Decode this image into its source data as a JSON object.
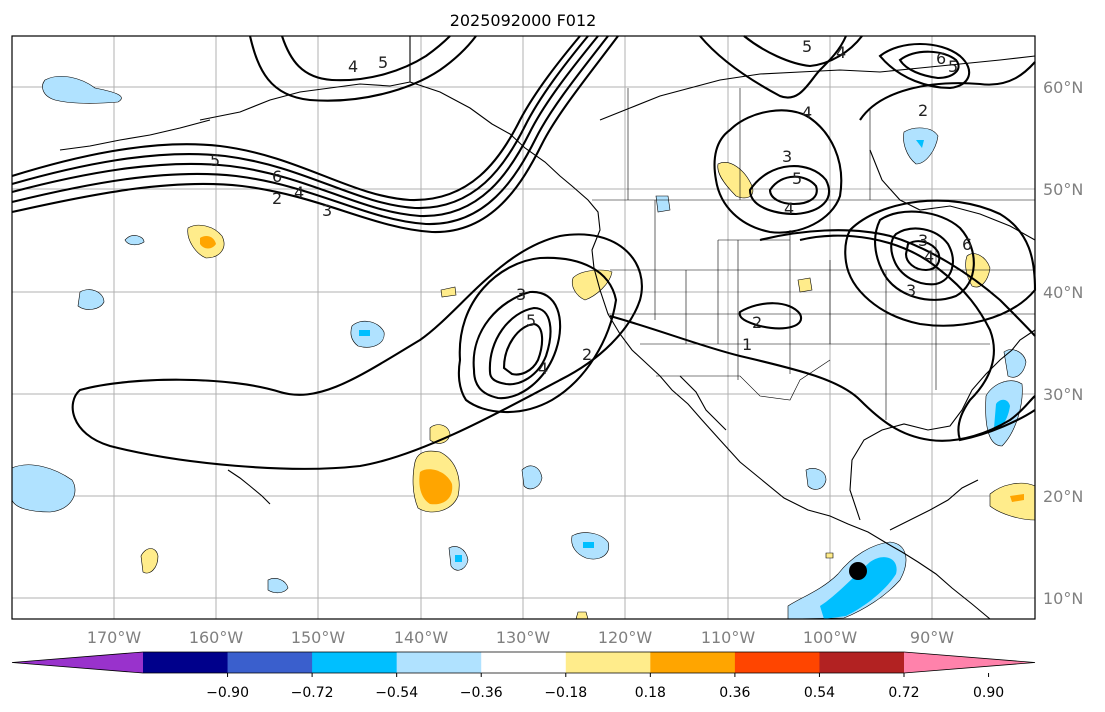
{
  "title": "2025092000 F012",
  "lon_ticks": [
    "170°W",
    "160°W",
    "150°W",
    "140°W",
    "130°W",
    "120°W",
    "110°W",
    "100°W",
    "90°W"
  ],
  "lat_ticks": [
    "60°N",
    "50°N",
    "40°N",
    "30°N",
    "20°N",
    "10°N"
  ],
  "contour_labels": [
    {
      "text": "4",
      "region": "north-pacific-jet"
    },
    {
      "text": "5",
      "region": "north-pacific-jet"
    },
    {
      "text": "5",
      "region": "aleutian-trough"
    },
    {
      "text": "6",
      "region": "aleutian-trough"
    },
    {
      "text": "4",
      "region": "aleutian-trough"
    },
    {
      "text": "2",
      "region": "aleutian-trough"
    },
    {
      "text": "3",
      "region": "aleutian-trough"
    },
    {
      "text": "3",
      "region": "california-offshore"
    },
    {
      "text": "5",
      "region": "california-offshore"
    },
    {
      "text": "4",
      "region": "california-offshore"
    },
    {
      "text": "2",
      "region": "california-offshore"
    },
    {
      "text": "1",
      "region": "southwest-us"
    },
    {
      "text": "2",
      "region": "southwest-us"
    },
    {
      "text": "5",
      "region": "northern-plains"
    },
    {
      "text": "3",
      "region": "northern-plains"
    },
    {
      "text": "4",
      "region": "northern-plains"
    },
    {
      "text": "4",
      "region": "northern-plains"
    },
    {
      "text": "5",
      "region": "canada-north"
    },
    {
      "text": "4",
      "region": "canada-north"
    },
    {
      "text": "6",
      "region": "hudson-bay"
    },
    {
      "text": "5",
      "region": "hudson-bay"
    },
    {
      "text": "2",
      "region": "hudson-bay"
    },
    {
      "text": "3",
      "region": "great-lakes"
    },
    {
      "text": "4",
      "region": "great-lakes"
    },
    {
      "text": "3",
      "region": "great-lakes"
    },
    {
      "text": "6",
      "region": "great-lakes"
    }
  ],
  "colorbar": {
    "colors": [
      "#9932cc",
      "#00008b",
      "#3a5fcd",
      "#00bfff",
      "#b0e2ff",
      "#ffffff",
      "#ffec8b",
      "#ffa500",
      "#ff4500",
      "#b22222",
      "#ff82ab"
    ],
    "ticks": [
      "−0.90",
      "−0.72",
      "−0.54",
      "−0.36",
      "−0.18",
      "0.18",
      "0.36",
      "0.54",
      "0.72",
      "0.90"
    ]
  }
}
